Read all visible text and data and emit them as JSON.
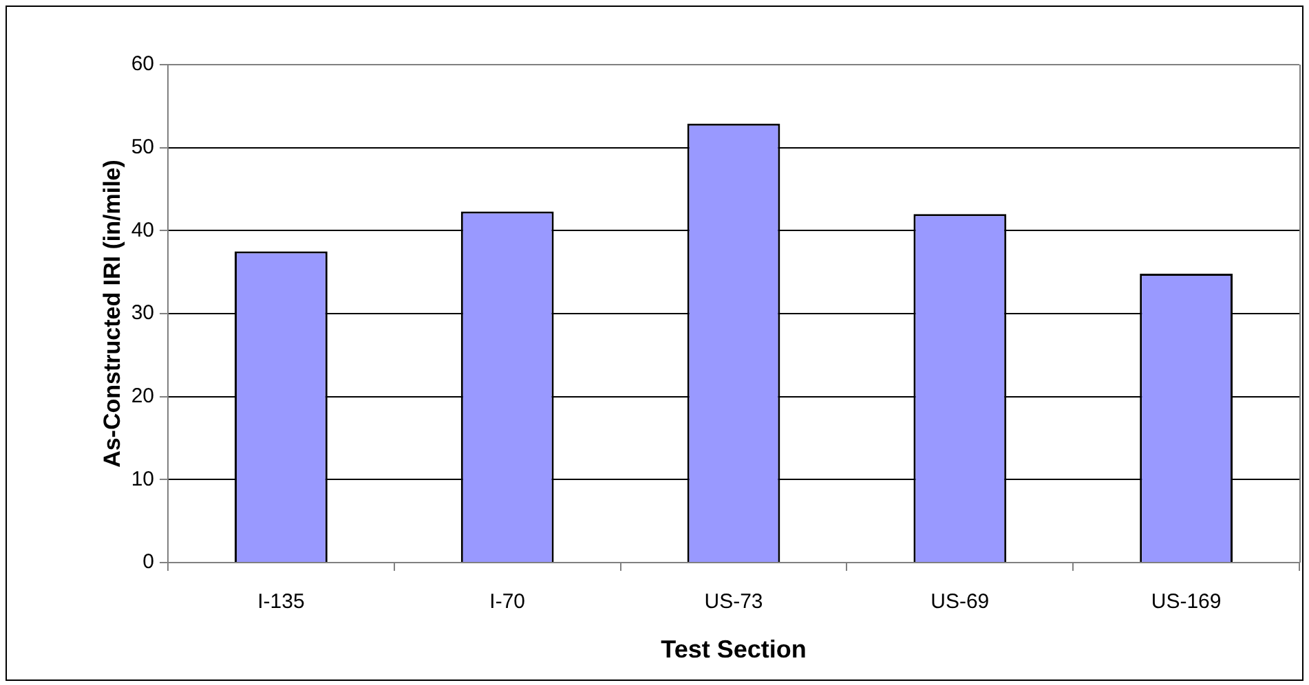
{
  "chart_data": {
    "type": "bar",
    "xlabel": "Test Section",
    "ylabel": "As-Constructed IRI (in/mile)",
    "categories": [
      "I-135",
      "I-70",
      "US-73",
      "US-69",
      "US-169"
    ],
    "values": [
      37.5,
      42.3,
      52.9,
      42.0,
      34.8
    ],
    "color": "#9999ff",
    "ylim": [
      0,
      60
    ],
    "yticks": [
      0,
      10,
      20,
      30,
      40,
      50,
      60
    ],
    "grid": "y"
  }
}
